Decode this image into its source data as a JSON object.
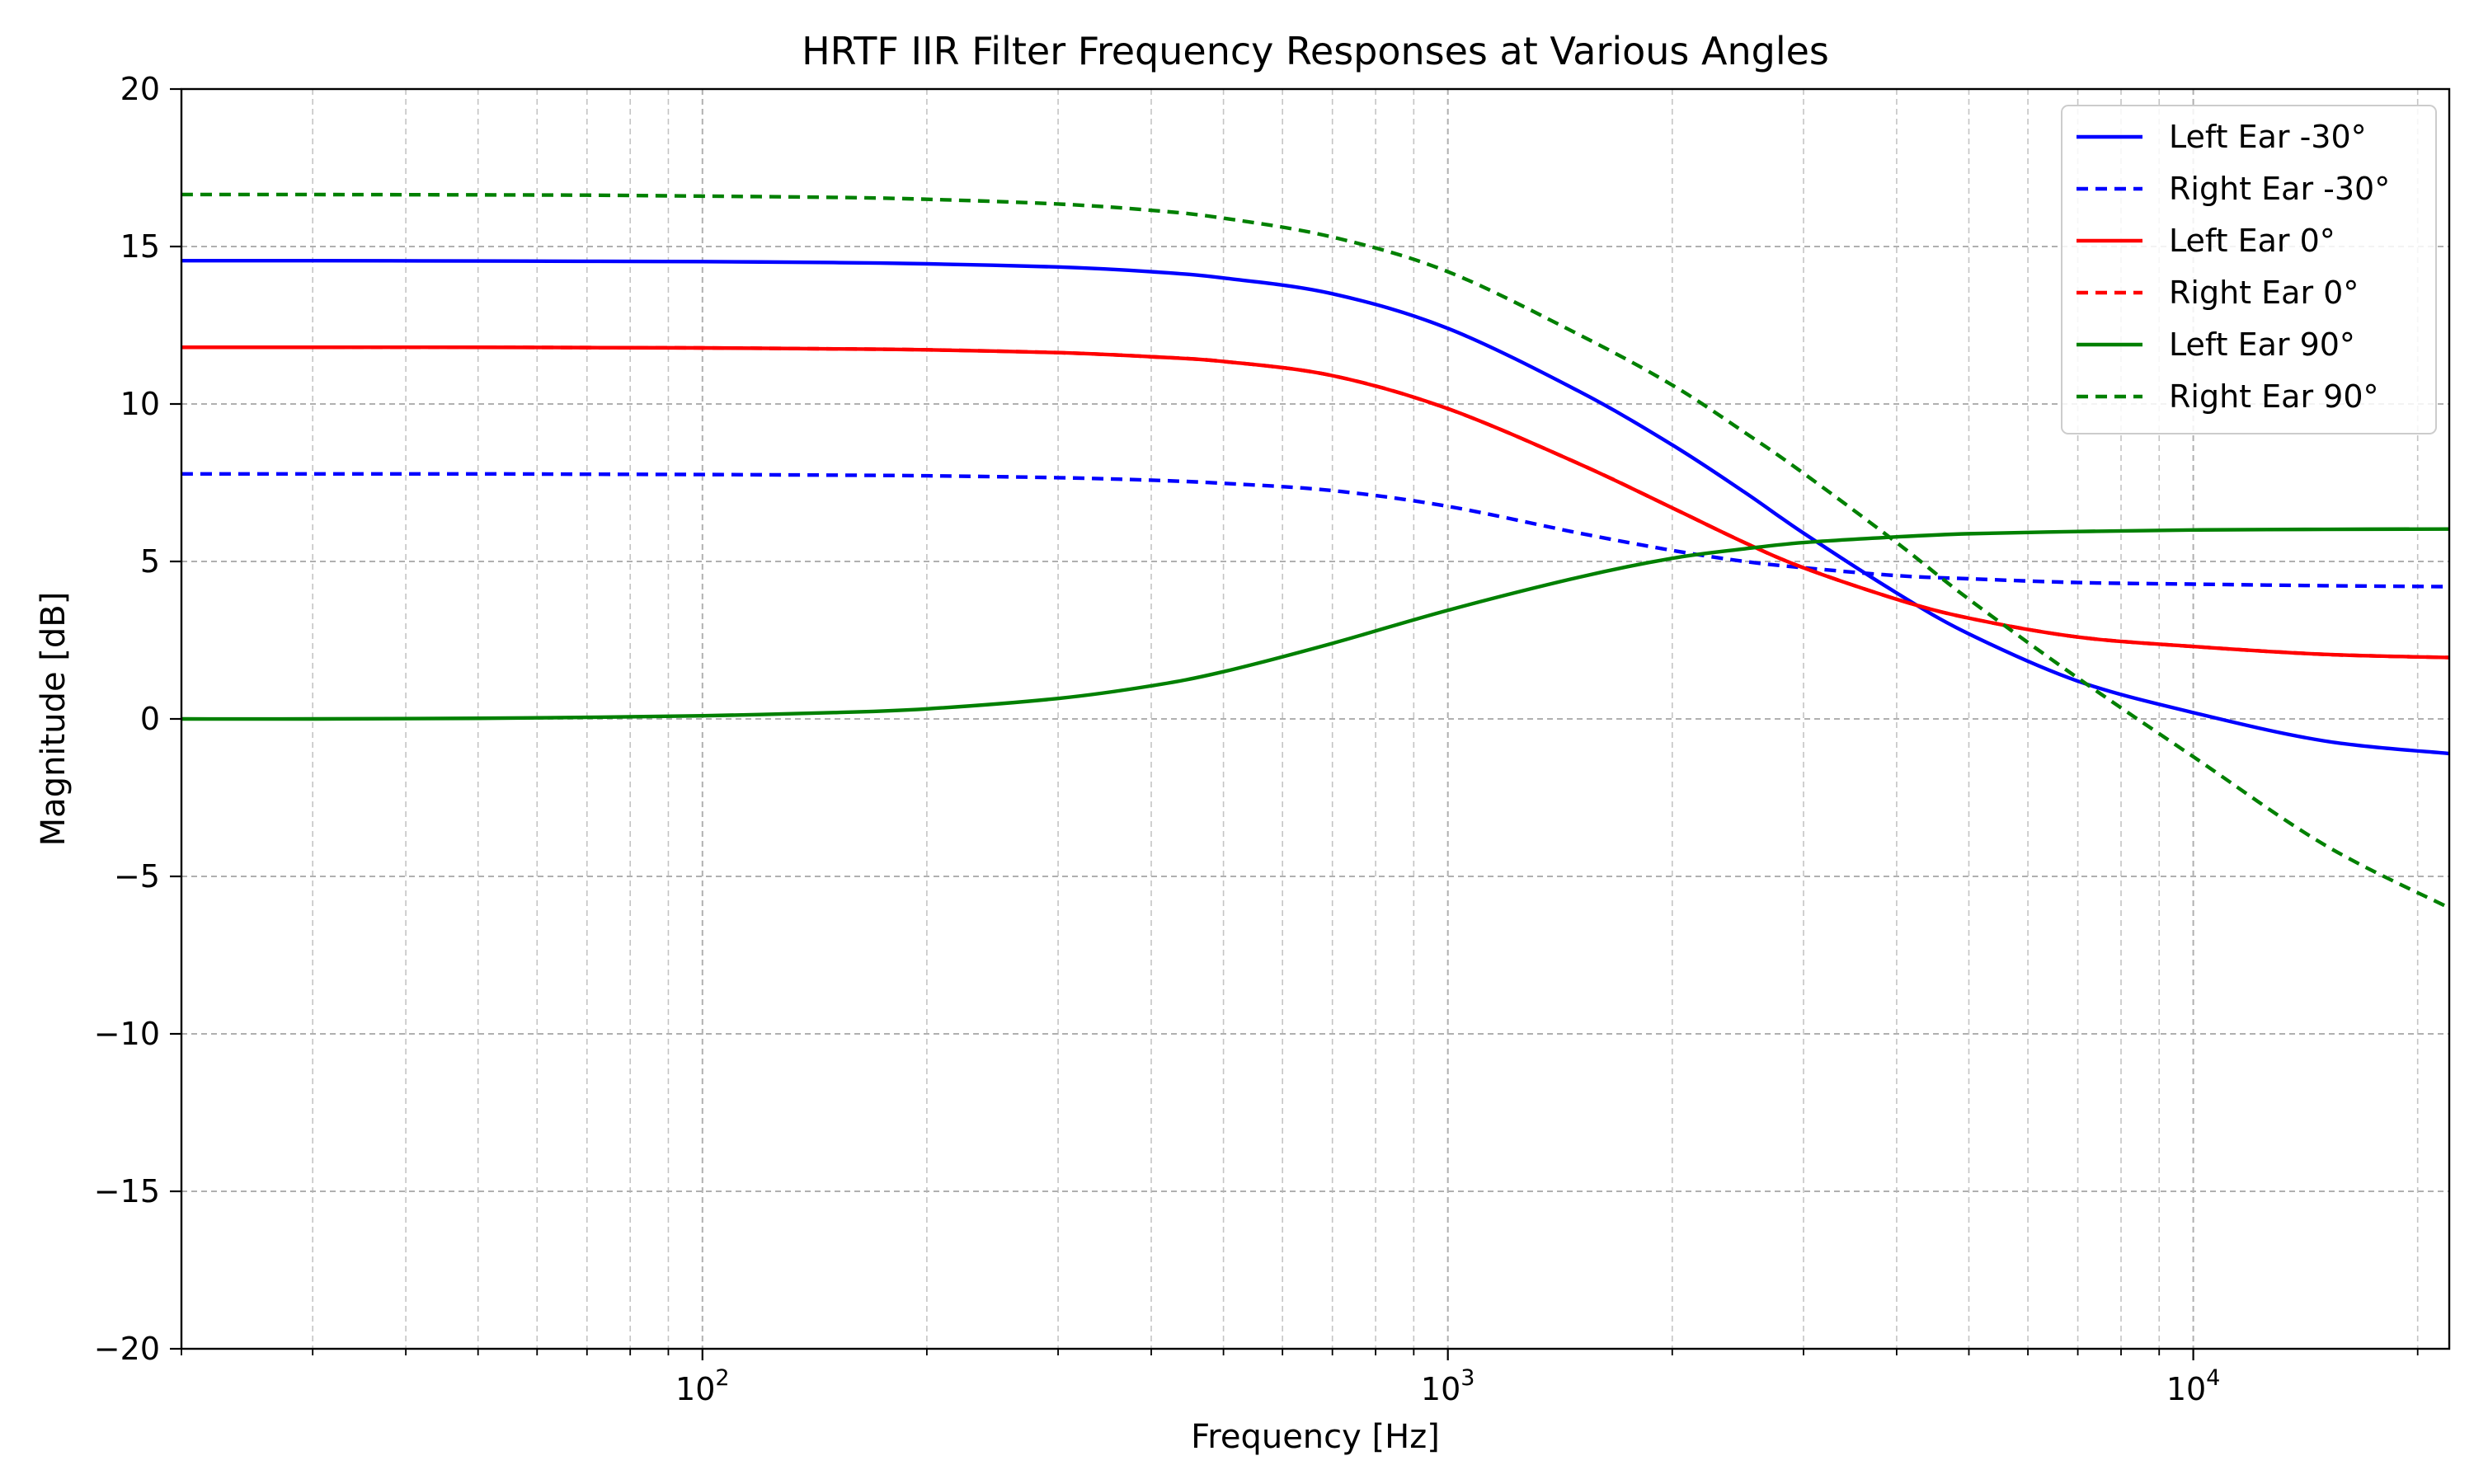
{
  "chart_data": {
    "type": "line",
    "title": "HRTF IIR Filter Frequency Responses at Various Angles",
    "xlabel": "Frequency [Hz]",
    "ylabel": "Magnitude [dB]",
    "xscale": "log",
    "xlim": [
      20,
      22050
    ],
    "ylim": [
      -20,
      20
    ],
    "x_ticks": [
      {
        "value": 100,
        "base": "10",
        "exp": "2"
      },
      {
        "value": 1000,
        "base": "10",
        "exp": "3"
      },
      {
        "value": 10000,
        "base": "10",
        "exp": "4"
      }
    ],
    "y_ticks": [
      {
        "value": -20,
        "label": "−20"
      },
      {
        "value": -15,
        "label": "−15"
      },
      {
        "value": -10,
        "label": "−10"
      },
      {
        "value": -5,
        "label": "−5"
      },
      {
        "value": 0,
        "label": "0"
      },
      {
        "value": 5,
        "label": "5"
      },
      {
        "value": 10,
        "label": "10"
      },
      {
        "value": 15,
        "label": "15"
      },
      {
        "value": 20,
        "label": "20"
      }
    ],
    "grid": true,
    "legend_position": "top-right",
    "x": [
      20,
      30,
      50,
      70,
      100,
      150,
      200,
      300,
      400,
      500,
      700,
      1000,
      1500,
      2000,
      2500,
      3000,
      4000,
      5000,
      7000,
      10000,
      15000,
      22050
    ],
    "series": [
      {
        "name": "Left Ear -30°",
        "color": "#0000ff",
        "style": "solid",
        "values": [
          14.55,
          14.55,
          14.54,
          14.53,
          14.52,
          14.49,
          14.45,
          14.35,
          14.2,
          14.0,
          13.5,
          12.4,
          10.4,
          8.7,
          7.2,
          5.9,
          4.0,
          2.7,
          1.2,
          0.2,
          -0.7,
          -1.1
        ]
      },
      {
        "name": "Right Ear -30°",
        "color": "#0000ff",
        "style": "dashed",
        "values": [
          7.78,
          7.78,
          7.78,
          7.77,
          7.76,
          7.74,
          7.72,
          7.66,
          7.58,
          7.48,
          7.25,
          6.75,
          5.9,
          5.35,
          5.0,
          4.8,
          4.55,
          4.45,
          4.33,
          4.28,
          4.23,
          4.2
        ]
      },
      {
        "name": "Left Ear 0°",
        "color": "#ff0000",
        "style": "solid",
        "values": [
          11.8,
          11.8,
          11.8,
          11.79,
          11.78,
          11.75,
          11.72,
          11.63,
          11.5,
          11.35,
          10.9,
          9.85,
          8.1,
          6.7,
          5.6,
          4.8,
          3.8,
          3.2,
          2.6,
          2.3,
          2.05,
          1.95
        ]
      },
      {
        "name": "Right Ear 0°",
        "color": "#ff0000",
        "style": "dashed",
        "values": [
          11.8,
          11.8,
          11.8,
          11.79,
          11.78,
          11.75,
          11.72,
          11.63,
          11.5,
          11.35,
          10.9,
          9.85,
          8.1,
          6.7,
          5.6,
          4.8,
          3.8,
          3.2,
          2.6,
          2.3,
          2.05,
          1.95
        ]
      },
      {
        "name": "Left Ear 90°",
        "color": "#008000",
        "style": "solid",
        "values": [
          0.0,
          0.0,
          0.02,
          0.05,
          0.1,
          0.2,
          0.32,
          0.65,
          1.05,
          1.5,
          2.4,
          3.45,
          4.5,
          5.1,
          5.4,
          5.6,
          5.78,
          5.88,
          5.95,
          6.0,
          6.02,
          6.03
        ]
      },
      {
        "name": "Right Ear 90°",
        "color": "#008000",
        "style": "dashed",
        "values": [
          16.65,
          16.65,
          16.64,
          16.63,
          16.6,
          16.56,
          16.5,
          16.35,
          16.15,
          15.9,
          15.3,
          14.2,
          12.2,
          10.6,
          9.1,
          7.8,
          5.6,
          3.8,
          1.3,
          -1.2,
          -4.0,
          -6.0
        ]
      }
    ]
  }
}
